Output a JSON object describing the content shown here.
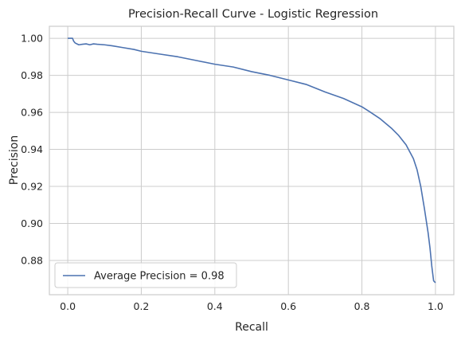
{
  "chart_data": {
    "type": "line",
    "title": "Precision-Recall Curve - Logistic Regression",
    "xlabel": "Recall",
    "ylabel": "Precision",
    "xlim": [
      -0.05,
      1.05
    ],
    "ylim": [
      0.8615,
      1.0065
    ],
    "xticks": [
      0.0,
      0.2,
      0.4,
      0.6,
      0.8,
      1.0
    ],
    "xtick_labels": [
      "0.0",
      "0.2",
      "0.4",
      "0.6",
      "0.8",
      "1.0"
    ],
    "yticks": [
      0.88,
      0.9,
      0.92,
      0.94,
      0.96,
      0.98,
      1.0
    ],
    "ytick_labels": [
      "0.88",
      "0.90",
      "0.92",
      "0.94",
      "0.96",
      "0.98",
      "1.00"
    ],
    "grid": true,
    "legend_position": "lower-left",
    "series": [
      {
        "name": "Average Precision = 0.98",
        "color": "#4c72b0",
        "x": [
          0.0,
          0.013,
          0.016,
          0.02,
          0.03,
          0.04,
          0.05,
          0.06,
          0.07,
          0.08,
          0.1,
          0.12,
          0.15,
          0.18,
          0.2,
          0.25,
          0.3,
          0.35,
          0.4,
          0.45,
          0.5,
          0.55,
          0.6,
          0.65,
          0.7,
          0.75,
          0.8,
          0.82,
          0.85,
          0.88,
          0.9,
          0.92,
          0.94,
          0.95,
          0.96,
          0.97,
          0.98,
          0.985,
          0.99,
          0.995,
          1.0,
          1.0
        ],
        "y": [
          1.0,
          1.0,
          0.9985,
          0.9975,
          0.9965,
          0.9968,
          0.997,
          0.9965,
          0.997,
          0.9968,
          0.9965,
          0.996,
          0.995,
          0.994,
          0.993,
          0.9915,
          0.99,
          0.988,
          0.986,
          0.9845,
          0.982,
          0.98,
          0.9775,
          0.975,
          0.971,
          0.9675,
          0.963,
          0.9605,
          0.9565,
          0.9515,
          0.9475,
          0.9425,
          0.935,
          0.929,
          0.92,
          0.908,
          0.895,
          0.887,
          0.877,
          0.869,
          0.868,
          0.868
        ]
      }
    ]
  }
}
